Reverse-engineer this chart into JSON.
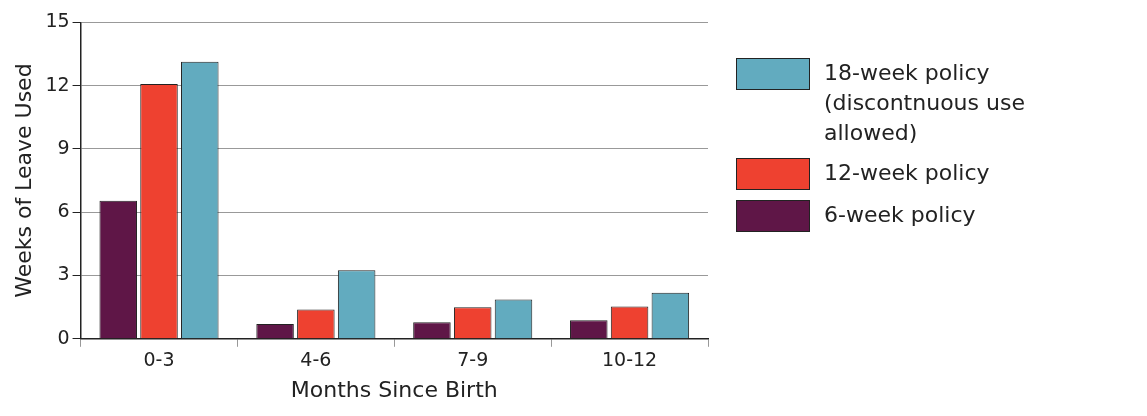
{
  "chart_data": {
    "type": "bar",
    "xlabel": "Months Since Birth",
    "ylabel": "Weeks of Leave Used",
    "categories": [
      "0-3",
      "4-6",
      "7-9",
      "10-12"
    ],
    "series": [
      {
        "name": "6-week policy",
        "color": "#5f1647",
        "values": [
          6.55,
          0.7,
          0.79,
          0.88
        ]
      },
      {
        "name": "12-week policy",
        "color": "#ee4130",
        "values": [
          12.08,
          1.39,
          1.49,
          1.53
        ]
      },
      {
        "name": "18-week policy (discontnuous use allowed)",
        "color": "#62abbf",
        "values": [
          13.14,
          3.25,
          1.86,
          2.18
        ]
      }
    ],
    "ylim": [
      0,
      15
    ],
    "yticks": [
      0,
      3,
      6,
      9,
      12,
      15
    ],
    "grid": "y",
    "legend": "right"
  }
}
